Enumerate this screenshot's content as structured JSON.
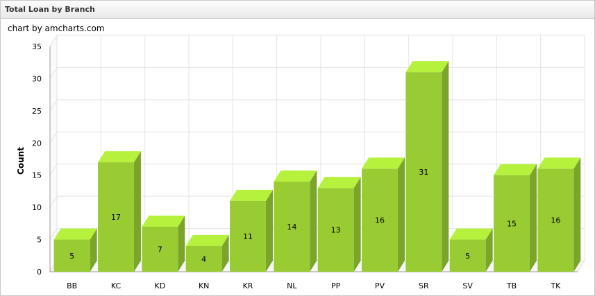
{
  "panel": {
    "title": "Total Loan by Branch"
  },
  "credit": "chart by amcharts.com",
  "colors": {
    "front": "#99cc33",
    "top": "#b6f23d",
    "side": "#7aa52a",
    "grid": "#e3e3e3",
    "axis": "#999999"
  },
  "chart_data": {
    "type": "bar",
    "title": "",
    "xlabel": "",
    "ylabel": "Count",
    "ylim": [
      0,
      35
    ],
    "yticks": [
      0,
      5,
      10,
      15,
      20,
      25,
      30,
      35
    ],
    "categories": [
      "BB",
      "KC",
      "KD",
      "KN",
      "KR",
      "NL",
      "PP",
      "PV",
      "SR",
      "SV",
      "TB",
      "TK"
    ],
    "values": [
      5,
      17,
      7,
      4,
      11,
      14,
      13,
      16,
      31,
      5,
      15,
      16
    ],
    "grid": true,
    "three_d": true
  }
}
